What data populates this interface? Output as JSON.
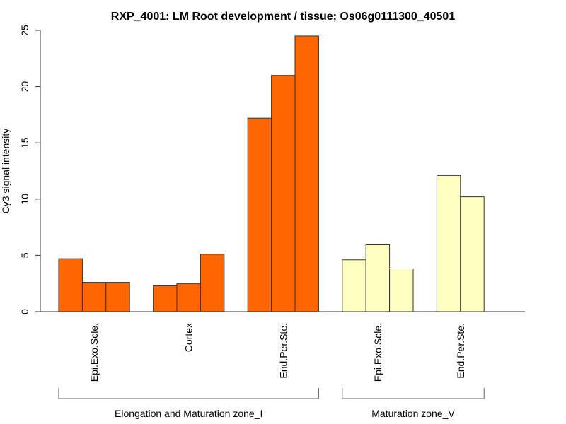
{
  "chart_data": {
    "type": "bar",
    "title": "RXP_4001: LM Root development / tissue; Os06g0111300_40501",
    "xlabel": "",
    "ylabel": "Cy3 signal intensity",
    "ylim": [
      0,
      25
    ],
    "yticks": [
      0,
      5,
      10,
      15,
      20,
      25
    ],
    "grid": false,
    "legend": "none",
    "groups": [
      {
        "name": "Elongation and Maturation zone_I",
        "color": "#ff6600",
        "categories": [
          {
            "label": "Epi.Exo.Scle.",
            "values": [
              4.7,
              2.6,
              2.6
            ]
          },
          {
            "label": "Cortex",
            "values": [
              2.3,
              2.5,
              5.1
            ]
          },
          {
            "label": "End.Per.Ste.",
            "values": [
              17.2,
              21.0,
              24.5
            ]
          }
        ]
      },
      {
        "name": "Maturation zone_V",
        "color": "#ffffc0",
        "categories": [
          {
            "label": "Epi.Exo.Scle.",
            "values": [
              4.6,
              6.0,
              3.8
            ]
          },
          {
            "label": "End.Per.Ste.",
            "values": [
              12.1,
              10.2
            ]
          }
        ]
      }
    ]
  }
}
